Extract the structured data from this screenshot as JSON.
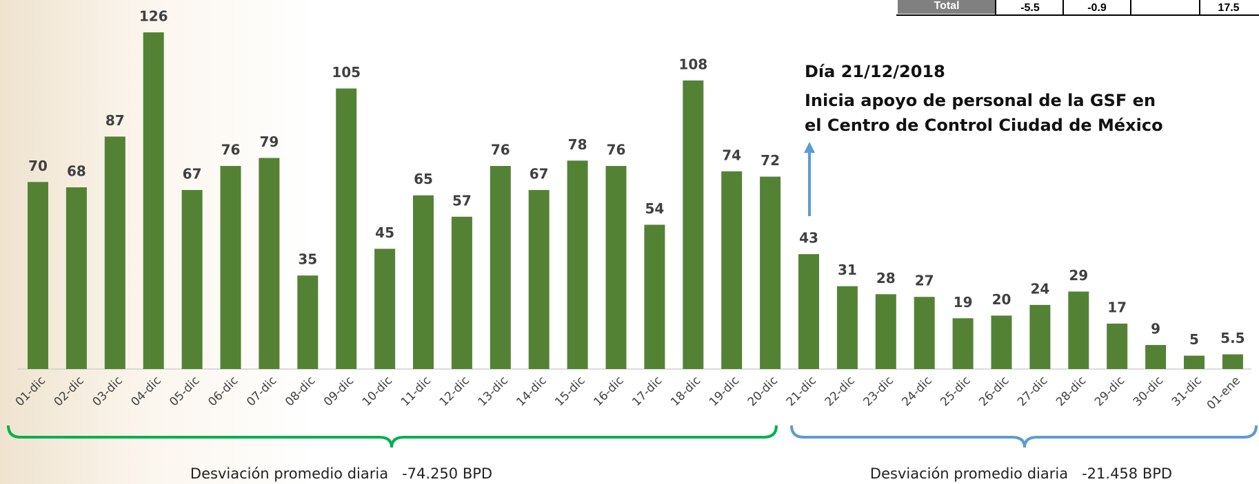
{
  "chart_data": {
    "type": "bar",
    "categories": [
      "01-dic",
      "02-dic",
      "03-dic",
      "04-dic",
      "05-dic",
      "06-dic",
      "07-dic",
      "08-dic",
      "09-dic",
      "10-dic",
      "11-dic",
      "12-dic",
      "13-dic",
      "14-dic",
      "15-dic",
      "16-dic",
      "17-dic",
      "18-dic",
      "19-dic",
      "20-dic",
      "21-dic",
      "22-dic",
      "23-dic",
      "24-dic",
      "25-dic",
      "26-dic",
      "27-dic",
      "28-dic",
      "29-dic",
      "30-dic",
      "31-dic",
      "01-ene"
    ],
    "values": [
      70,
      68,
      87,
      126,
      67,
      76,
      79,
      35,
      105,
      45,
      65,
      57,
      76,
      67,
      78,
      76,
      54,
      108,
      74,
      72,
      43,
      31,
      28,
      27,
      19,
      20,
      24,
      29,
      17,
      9,
      5,
      5.5
    ],
    "color": "#548235",
    "annotation": {
      "title": "Día 21/12/2018",
      "lines": [
        "Inicia apoyo de personal de la GSF en",
        "el Centro de Control Ciudad de México"
      ]
    },
    "brace_labels": [
      "Desviación promedio diaria   -74.250 BPD",
      "Desviación promedio diaria   -21.458 BPD"
    ]
  },
  "table": {
    "cells": [
      "Total",
      "-5.5",
      "-0.9",
      "17.5"
    ]
  }
}
